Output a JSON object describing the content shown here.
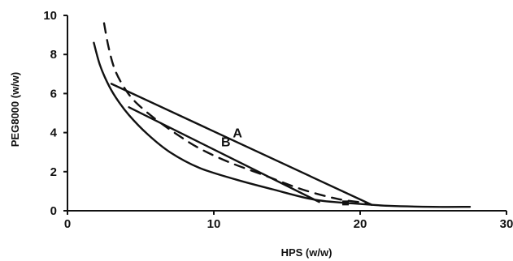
{
  "chart_data": {
    "type": "line",
    "xlabel": "HPS (w/w)",
    "ylabel": "PEG8000 (w/w)",
    "xlim": [
      0,
      30
    ],
    "ylim": [
      0,
      10
    ],
    "xticks": [
      0,
      10,
      20,
      30
    ],
    "yticks": [
      0,
      2,
      4,
      6,
      8,
      10
    ],
    "grid": false,
    "series": [
      {
        "style": "solid",
        "color": "#111111",
        "x": [
          1.8,
          2.2,
          2.7,
          3.3,
          4.2,
          5.5,
          7.0,
          9.0,
          11.5,
          14.0,
          17.0,
          20.0,
          22.0,
          25.0,
          27.5
        ],
        "y": [
          8.6,
          7.5,
          6.6,
          5.8,
          4.9,
          3.9,
          3.0,
          2.2,
          1.6,
          1.1,
          0.55,
          0.35,
          0.25,
          0.2,
          0.2
        ]
      },
      {
        "style": "dashed",
        "color": "#111111",
        "x": [
          2.5,
          2.8,
          3.2,
          3.8,
          4.6,
          6.0,
          7.5,
          9.0,
          11.0,
          13.5,
          16.0,
          18.5,
          20.5
        ],
        "y": [
          9.6,
          8.4,
          7.3,
          6.4,
          5.6,
          4.7,
          3.9,
          3.2,
          2.5,
          1.8,
          1.1,
          0.6,
          0.4
        ]
      }
    ],
    "tie_lines": [
      {
        "label": "A",
        "from": [
          3.0,
          6.5
        ],
        "to": [
          20.8,
          0.3
        ]
      },
      {
        "label": "B",
        "from": [
          4.2,
          5.3
        ],
        "to": [
          17.2,
          0.45
        ]
      }
    ],
    "markers": [
      {
        "x": 19.0,
        "y": 0.4
      }
    ]
  }
}
